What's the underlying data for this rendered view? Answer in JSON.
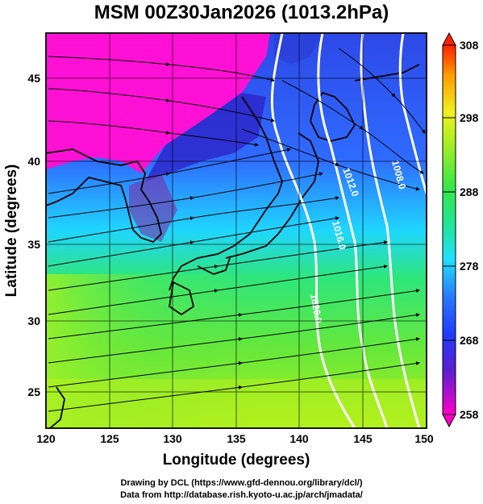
{
  "title": "MSM 00Z30Jan2026 (1013.2hPa)",
  "map": {
    "xaxis": {
      "label": "Longitude (degrees)",
      "range": [
        120,
        150
      ],
      "ticks": [
        "120",
        "125",
        "130",
        "135",
        "140",
        "145",
        "150"
      ]
    },
    "yaxis": {
      "label": "Latitude  (degrees)",
      "range": [
        22.4,
        47.6
      ],
      "ticks": [
        "25",
        "30",
        "35",
        "40",
        "45"
      ]
    },
    "contours": [
      {
        "label": "1008.0"
      },
      {
        "label": "1012.0"
      },
      {
        "label": "1016.0"
      },
      {
        "label": "1020.0"
      }
    ]
  },
  "colorbar": {
    "ticks": [
      "308",
      "298",
      "288",
      "278",
      "268",
      "258"
    ],
    "range": [
      258,
      308
    ],
    "colors": [
      "#ff00c8",
      "#3a1fbf",
      "#2e5cff",
      "#20d8ff",
      "#28e68c",
      "#3fe64a",
      "#b8f21e",
      "#f0f020",
      "#ff8c00",
      "#ff2000"
    ]
  },
  "credits": {
    "line1": "Drawing by DCL (https://www.gfd-dennou.org/library/dcl/)",
    "line2": "Data from http://database.rish.kyoto-u.ac.jp/arch/jmadata/"
  }
}
